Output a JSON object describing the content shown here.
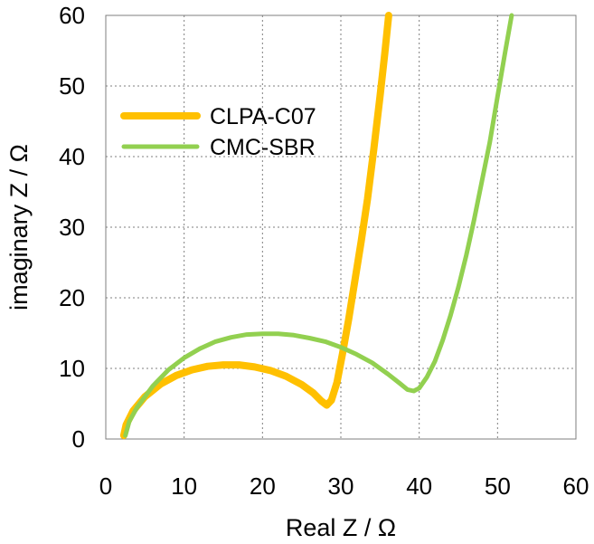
{
  "chart_data": {
    "type": "line",
    "xlabel": "Real Z / Ω",
    "ylabel": "imaginary Z / Ω",
    "xlim": [
      0,
      60
    ],
    "ylim": [
      0,
      60
    ],
    "xticks": [
      0,
      10,
      20,
      30,
      40,
      50,
      60
    ],
    "yticks": [
      0,
      10,
      20,
      30,
      40,
      50,
      60
    ],
    "grid": true,
    "legend": "top-left",
    "series": [
      {
        "name": "CLPA-C07",
        "color": "#FFC000",
        "x": [
          2.3,
          2.6,
          3.5,
          5.0,
          7.0,
          9.0,
          11.0,
          13.0,
          15.0,
          17.0,
          19.0,
          21.0,
          23.0,
          25.0,
          26.5,
          27.5,
          28.2,
          28.8,
          29.5,
          30.2,
          31.0,
          31.8,
          32.6,
          33.4,
          34.2,
          35.0,
          35.6,
          36.1
        ],
        "y": [
          0.5,
          2.0,
          4.0,
          6.0,
          7.8,
          9.0,
          9.8,
          10.3,
          10.5,
          10.5,
          10.2,
          9.7,
          8.9,
          7.7,
          6.5,
          5.4,
          4.8,
          5.5,
          8.0,
          12.0,
          17.0,
          22.5,
          28.0,
          34.0,
          41.0,
          48.5,
          54.5,
          60.0
        ]
      },
      {
        "name": "CMC-SBR",
        "color": "#92D050",
        "x": [
          2.5,
          3.0,
          4.0,
          6.0,
          8.0,
          10.0,
          12.0,
          14.0,
          16.0,
          18.0,
          20.0,
          22.0,
          24.0,
          26.0,
          28.0,
          30.0,
          32.0,
          34.0,
          36.0,
          37.5,
          38.5,
          39.3,
          40.0,
          41.0,
          42.0,
          43.0,
          44.0,
          45.0,
          46.0,
          47.0,
          48.0,
          49.0,
          50.0,
          51.0,
          51.8
        ],
        "y": [
          0.5,
          2.5,
          4.5,
          7.5,
          9.8,
          11.5,
          12.8,
          13.8,
          14.4,
          14.8,
          14.9,
          14.9,
          14.7,
          14.3,
          13.8,
          13.0,
          12.0,
          10.8,
          9.2,
          7.9,
          7.0,
          6.8,
          7.2,
          8.8,
          11.0,
          14.0,
          17.5,
          21.5,
          26.0,
          31.0,
          36.5,
          42.0,
          48.5,
          55.0,
          60.0
        ]
      }
    ]
  }
}
